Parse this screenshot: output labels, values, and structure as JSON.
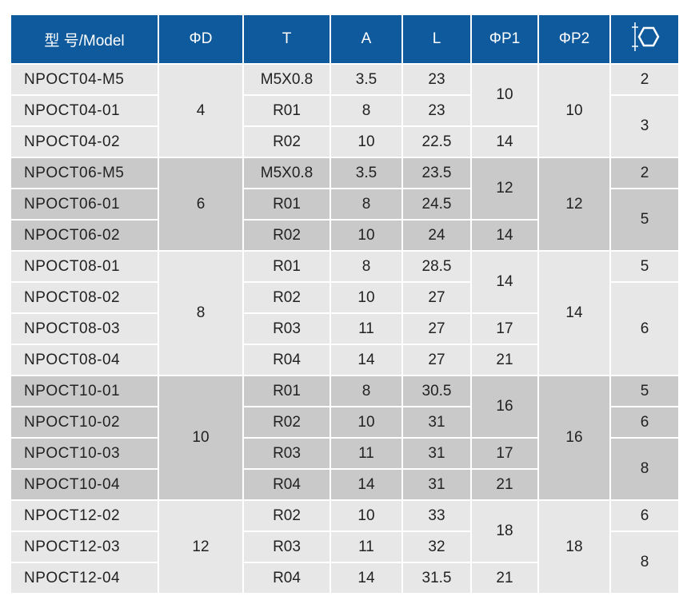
{
  "header": [
    "型 号/Model",
    "ΦD",
    "T",
    "A",
    "L",
    "ΦP1",
    "ΦP2"
  ],
  "rows": [
    [
      "NPOCT04-M5",
      "M5X0.8",
      "3.5",
      "23"
    ],
    [
      "NPOCT04-01",
      "R01",
      "8",
      "23"
    ],
    [
      "NPOCT04-02",
      "R02",
      "10",
      "22.5"
    ],
    [
      "NPOCT06-M5",
      "M5X0.8",
      "3.5",
      "23.5"
    ],
    [
      "NPOCT06-01",
      "R01",
      "8",
      "24.5"
    ],
    [
      "NPOCT06-02",
      "R02",
      "10",
      "24"
    ],
    [
      "NPOCT08-01",
      "R01",
      "8",
      "28.5"
    ],
    [
      "NPOCT08-02",
      "R02",
      "10",
      "27"
    ],
    [
      "NPOCT08-03",
      "R03",
      "11",
      "27"
    ],
    [
      "NPOCT08-04",
      "R04",
      "14",
      "27"
    ],
    [
      "NPOCT10-01",
      "R01",
      "8",
      "30.5"
    ],
    [
      "NPOCT10-02",
      "R02",
      "10",
      "31"
    ],
    [
      "NPOCT10-03",
      "R03",
      "11",
      "31"
    ],
    [
      "NPOCT10-04",
      "R04",
      "14",
      "31"
    ],
    [
      "NPOCT12-02",
      "R02",
      "10",
      "33"
    ],
    [
      "NPOCT12-03",
      "R03",
      "11",
      "32"
    ],
    [
      "NPOCT12-04",
      "R04",
      "14",
      "31.5"
    ]
  ],
  "d": [
    "4",
    "6",
    "8",
    "10",
    "12"
  ],
  "p1": [
    "10",
    "14",
    "12",
    "14",
    "14",
    "17",
    "21",
    "16",
    "17",
    "21",
    "18",
    "21"
  ],
  "p2": [
    "10",
    "12",
    "14",
    "16",
    "18"
  ],
  "hex": [
    "2",
    "3",
    "2",
    "5",
    "5",
    "6",
    "5",
    "6",
    "8",
    "6",
    "8"
  ]
}
